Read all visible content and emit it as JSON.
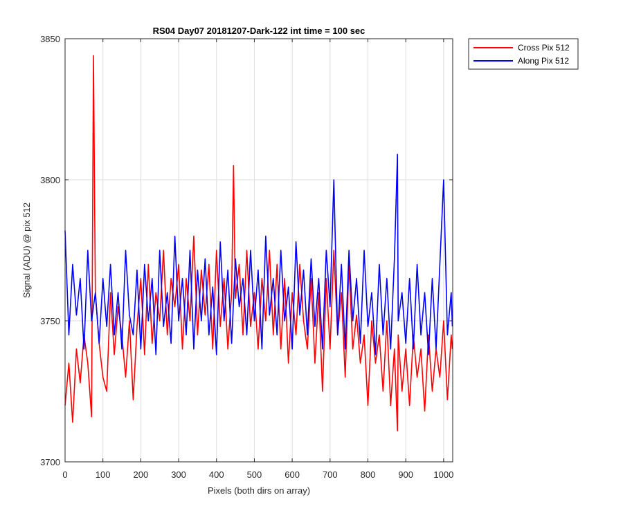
{
  "chart_data": {
    "type": "line",
    "title": "RS04 Day07 20181207-Dark-122 int time = 100 sec",
    "xlabel": "Pixels (both dirs on array)",
    "ylabel": "Signal (ADU) @ pix 512",
    "xlim": [
      0,
      1024
    ],
    "ylim": [
      3700,
      3850
    ],
    "xticks": [
      0,
      100,
      200,
      300,
      400,
      500,
      600,
      700,
      800,
      900,
      1000
    ],
    "yticks": [
      3700,
      3750,
      3800,
      3850
    ],
    "grid": true,
    "legend_position": "outside-top-right",
    "series": [
      {
        "name": "Cross Pix 512",
        "color": "#ff0000",
        "x": [
          0,
          10,
          20,
          30,
          40,
          50,
          60,
          70,
          75,
          80,
          90,
          100,
          110,
          120,
          130,
          140,
          150,
          160,
          170,
          180,
          190,
          200,
          210,
          220,
          230,
          240,
          250,
          260,
          270,
          280,
          290,
          300,
          310,
          320,
          330,
          340,
          350,
          360,
          370,
          380,
          390,
          400,
          410,
          420,
          430,
          440,
          445,
          450,
          460,
          470,
          480,
          490,
          500,
          510,
          520,
          530,
          540,
          550,
          560,
          570,
          580,
          590,
          600,
          610,
          620,
          630,
          640,
          650,
          660,
          670,
          680,
          690,
          700,
          710,
          720,
          730,
          740,
          750,
          760,
          770,
          780,
          790,
          800,
          810,
          820,
          830,
          840,
          850,
          860,
          870,
          878,
          880,
          890,
          900,
          910,
          920,
          930,
          940,
          950,
          960,
          970,
          980,
          990,
          1000,
          1010,
          1020,
          1023
        ],
        "y": [
          3720,
          3735,
          3714,
          3740,
          3728,
          3745,
          3735,
          3716,
          3844,
          3760,
          3742,
          3730,
          3725,
          3760,
          3738,
          3755,
          3745,
          3730,
          3750,
          3722,
          3748,
          3765,
          3738,
          3770,
          3742,
          3760,
          3750,
          3775,
          3745,
          3765,
          3755,
          3770,
          3740,
          3765,
          3750,
          3780,
          3745,
          3768,
          3752,
          3770,
          3740,
          3775,
          3748,
          3765,
          3740,
          3760,
          3805,
          3758,
          3770,
          3745,
          3775,
          3748,
          3760,
          3740,
          3765,
          3750,
          3775,
          3745,
          3770,
          3740,
          3765,
          3735,
          3760,
          3745,
          3770,
          3750,
          3740,
          3765,
          3735,
          3760,
          3725,
          3765,
          3740,
          3775,
          3745,
          3760,
          3730,
          3770,
          3740,
          3752,
          3735,
          3745,
          3720,
          3750,
          3735,
          3745,
          3725,
          3750,
          3720,
          3740,
          3711,
          3745,
          3725,
          3740,
          3720,
          3745,
          3730,
          3740,
          3718,
          3745,
          3725,
          3740,
          3730,
          3750,
          3722,
          3745,
          3740
        ]
      },
      {
        "name": "Along Pix 512",
        "color": "#0000ff",
        "x": [
          0,
          10,
          20,
          30,
          40,
          50,
          60,
          70,
          80,
          90,
          100,
          110,
          120,
          130,
          140,
          150,
          160,
          170,
          180,
          190,
          200,
          210,
          220,
          230,
          240,
          250,
          260,
          270,
          280,
          290,
          300,
          310,
          320,
          330,
          340,
          350,
          360,
          370,
          380,
          390,
          400,
          410,
          420,
          430,
          440,
          450,
          460,
          470,
          480,
          490,
          500,
          510,
          520,
          530,
          540,
          550,
          560,
          570,
          580,
          590,
          600,
          610,
          620,
          630,
          640,
          650,
          660,
          670,
          680,
          690,
          700,
          710,
          720,
          730,
          740,
          750,
          760,
          770,
          780,
          790,
          800,
          810,
          820,
          830,
          840,
          850,
          860,
          870,
          878,
          880,
          890,
          900,
          910,
          920,
          930,
          940,
          950,
          960,
          970,
          980,
          990,
          1000,
          1010,
          1020,
          1023
        ],
        "y": [
          3782,
          3745,
          3770,
          3752,
          3765,
          3740,
          3775,
          3750,
          3760,
          3742,
          3765,
          3748,
          3770,
          3745,
          3760,
          3740,
          3775,
          3752,
          3745,
          3768,
          3740,
          3770,
          3750,
          3765,
          3738,
          3775,
          3748,
          3760,
          3742,
          3780,
          3750,
          3765,
          3745,
          3775,
          3740,
          3768,
          3750,
          3772,
          3745,
          3762,
          3738,
          3778,
          3750,
          3768,
          3742,
          3772,
          3755,
          3765,
          3745,
          3775,
          3750,
          3768,
          3740,
          3780,
          3752,
          3765,
          3745,
          3775,
          3750,
          3762,
          3740,
          3778,
          3752,
          3768,
          3745,
          3772,
          3748,
          3765,
          3740,
          3775,
          3755,
          3800,
          3745,
          3770,
          3740,
          3775,
          3750,
          3765,
          3742,
          3775,
          3748,
          3760,
          3738,
          3770,
          3745,
          3765,
          3740,
          3772,
          3809,
          3750,
          3760,
          3742,
          3765,
          3740,
          3770,
          3745,
          3760,
          3738,
          3765,
          3740,
          3770,
          3800,
          3745,
          3760,
          3748
        ]
      }
    ]
  }
}
